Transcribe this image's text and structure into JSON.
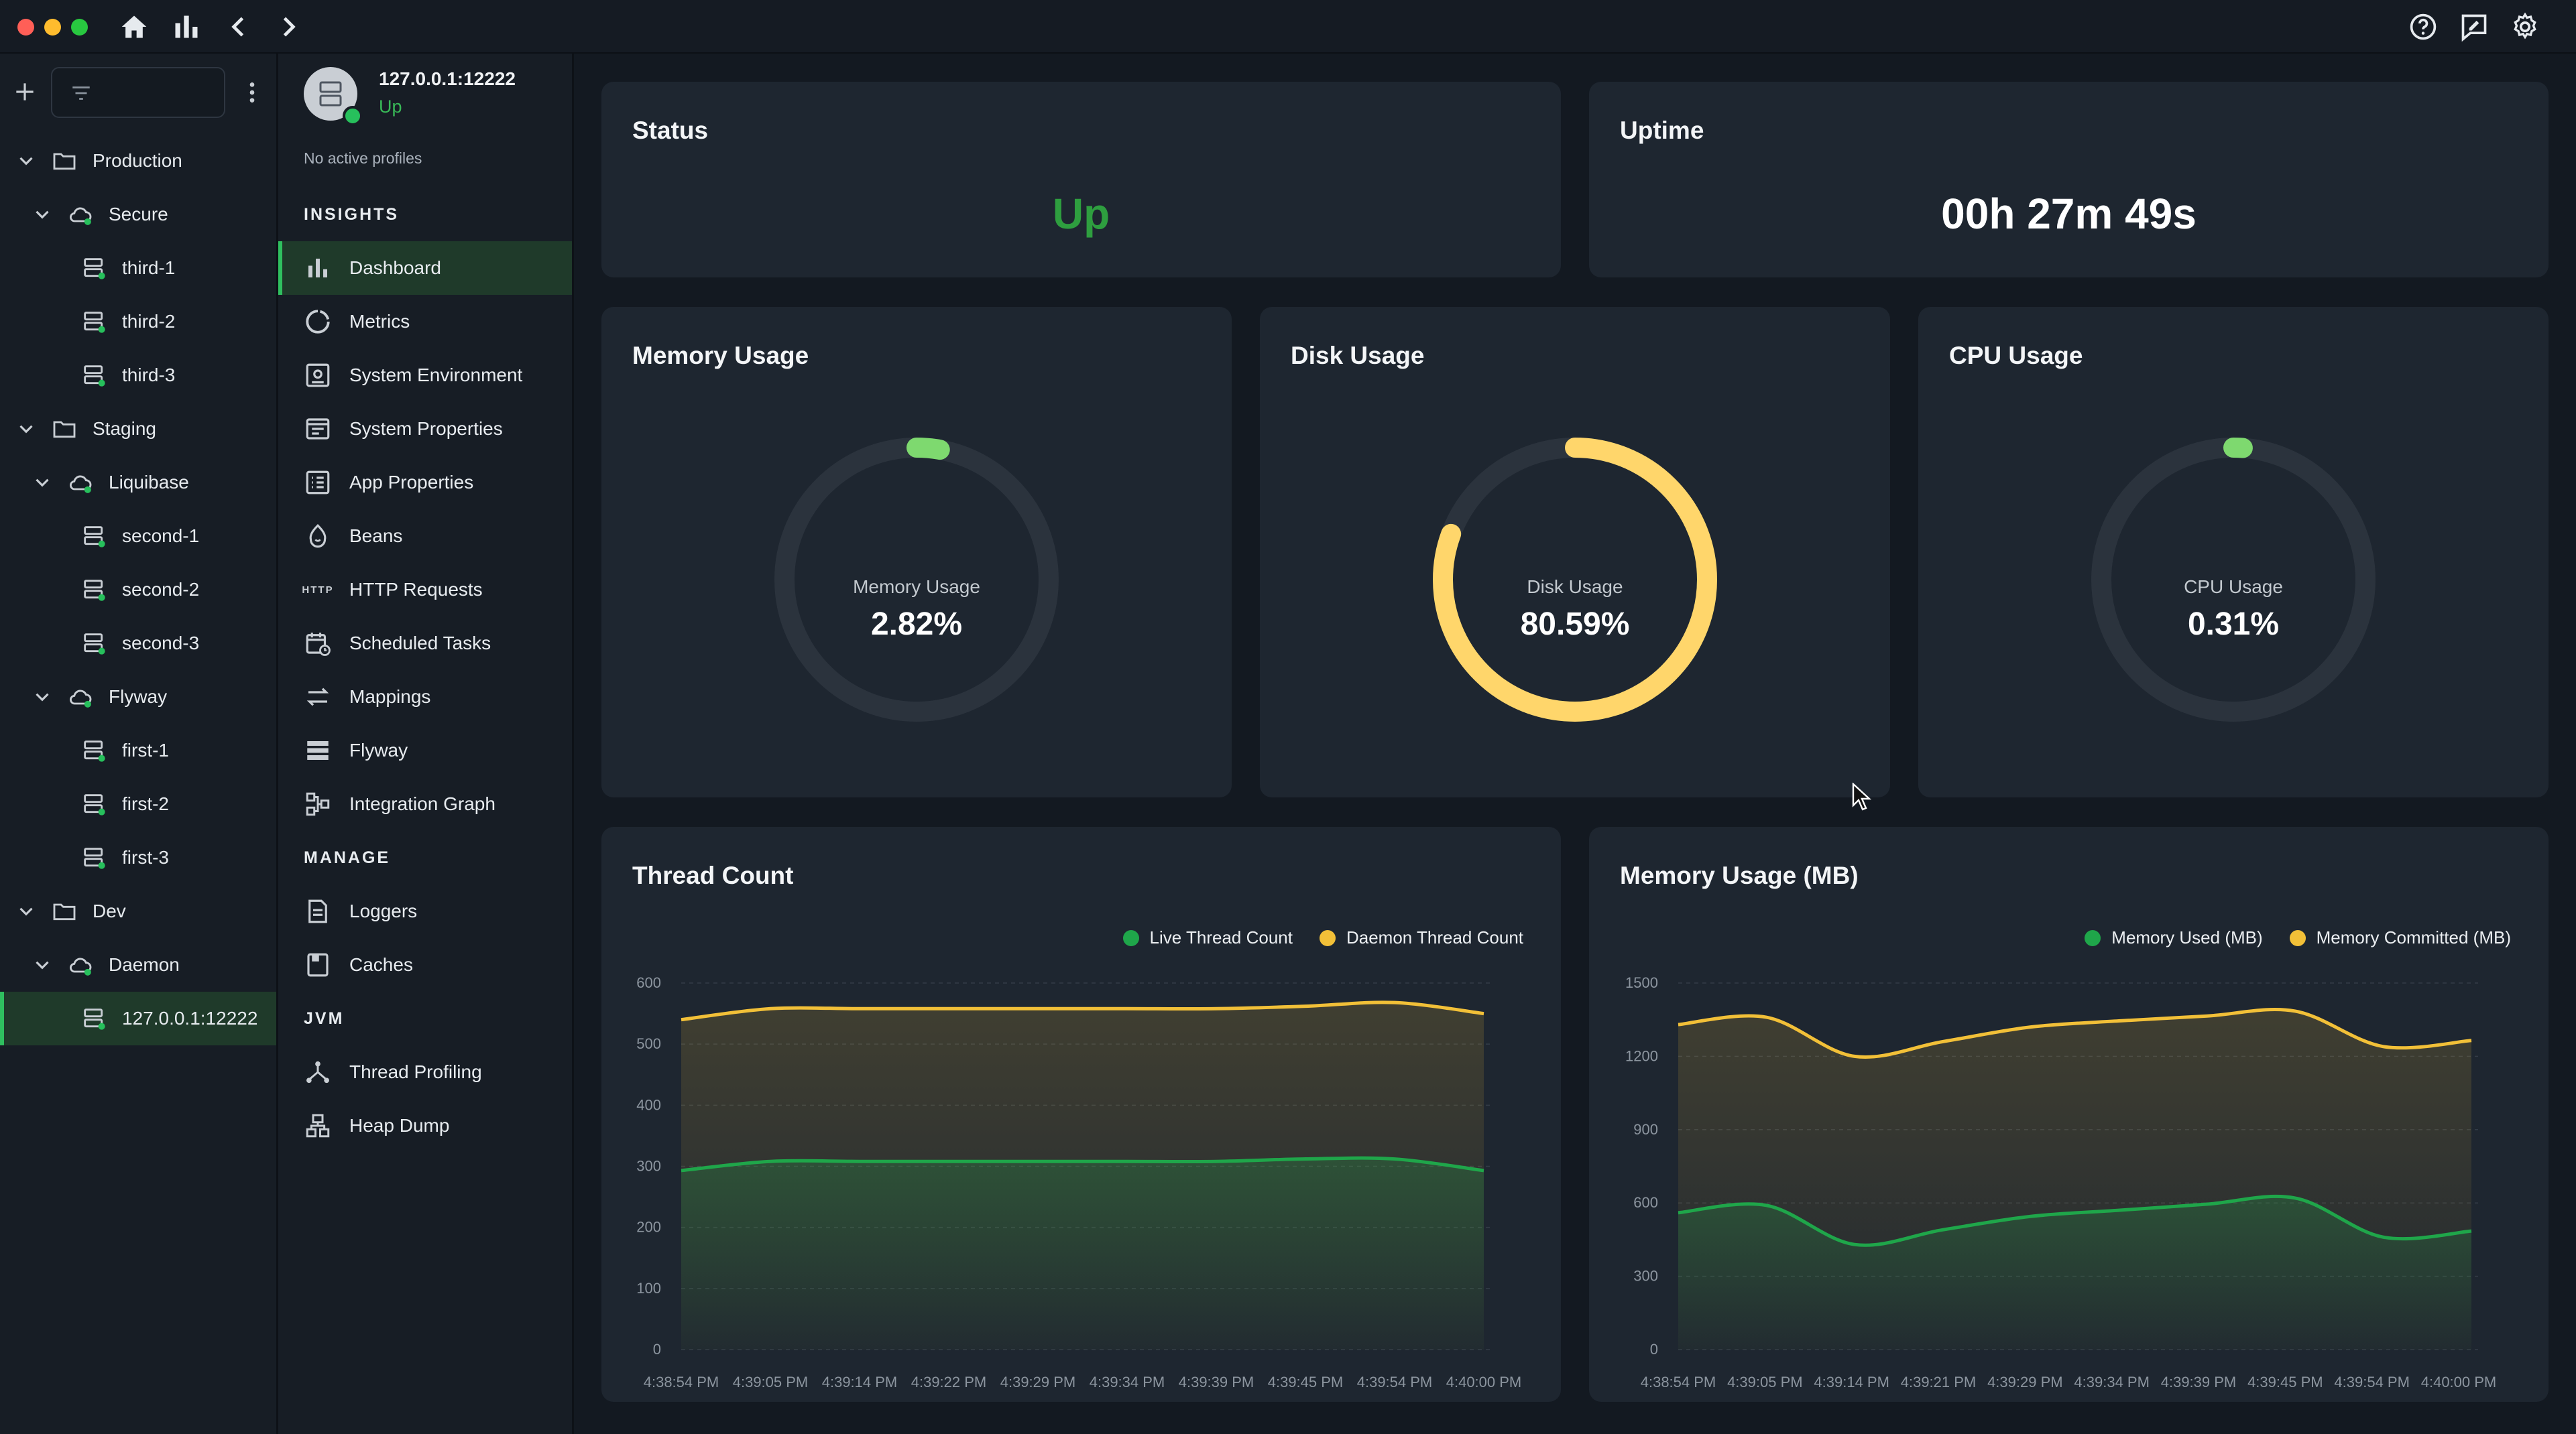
{
  "colors": {
    "green": "#1fa64a",
    "yellow": "#f2c038",
    "gauge_track": "#2b333d",
    "memory_gauge": "#7ed96f",
    "disk_gauge": "#ffd66b",
    "cpu_gauge": "#7ed96f",
    "status_up": "#2e9e3f"
  },
  "titlebar": {
    "icons": [
      "home-icon",
      "bar-chart-icon",
      "back-icon",
      "forward-icon",
      "help-icon",
      "feedback-icon",
      "settings-icon"
    ]
  },
  "tree": {
    "items": [
      {
        "label": "Production",
        "level": 0,
        "type": "folder"
      },
      {
        "label": "Secure",
        "level": 1,
        "type": "cloud"
      },
      {
        "label": "third-1",
        "level": 2,
        "type": "server"
      },
      {
        "label": "third-2",
        "level": 2,
        "type": "server"
      },
      {
        "label": "third-3",
        "level": 2,
        "type": "server"
      },
      {
        "label": "Staging",
        "level": 0,
        "type": "folder"
      },
      {
        "label": "Liquibase",
        "level": 1,
        "type": "cloud"
      },
      {
        "label": "second-1",
        "level": 2,
        "type": "server"
      },
      {
        "label": "second-2",
        "level": 2,
        "type": "server"
      },
      {
        "label": "second-3",
        "level": 2,
        "type": "server"
      },
      {
        "label": "Flyway",
        "level": 1,
        "type": "cloud"
      },
      {
        "label": "first-1",
        "level": 2,
        "type": "server"
      },
      {
        "label": "first-2",
        "level": 2,
        "type": "server"
      },
      {
        "label": "first-3",
        "level": 2,
        "type": "server"
      },
      {
        "label": "Dev",
        "level": 0,
        "type": "folder"
      },
      {
        "label": "Daemon",
        "level": 1,
        "type": "cloud"
      },
      {
        "label": "127.0.0.1:12222",
        "level": 2,
        "type": "server",
        "selected": true
      }
    ]
  },
  "server": {
    "name": "127.0.0.1:12222",
    "status": "Up",
    "profiles": "No active profiles"
  },
  "nav": {
    "insights_label": "INSIGHTS",
    "manage_label": "MANAGE",
    "jvm_label": "JVM",
    "insights": [
      {
        "label": "Dashboard",
        "icon": "bar-chart-icon",
        "active": true
      },
      {
        "label": "Metrics",
        "icon": "metrics-icon"
      },
      {
        "label": "System Environment",
        "icon": "system-environment-icon"
      },
      {
        "label": "System Properties",
        "icon": "system-properties-icon"
      },
      {
        "label": "App Properties",
        "icon": "app-properties-icon"
      },
      {
        "label": "Beans",
        "icon": "beans-icon"
      },
      {
        "label": "HTTP Requests",
        "icon": "http-icon"
      },
      {
        "label": "Scheduled Tasks",
        "icon": "scheduled-tasks-icon"
      },
      {
        "label": "Mappings",
        "icon": "mappings-icon"
      },
      {
        "label": "Flyway",
        "icon": "flyway-icon"
      },
      {
        "label": "Integration Graph",
        "icon": "integration-graph-icon"
      }
    ],
    "manage": [
      {
        "label": "Loggers",
        "icon": "loggers-icon"
      },
      {
        "label": "Caches",
        "icon": "caches-icon"
      }
    ],
    "jvm": [
      {
        "label": "Thread Profiling",
        "icon": "thread-profiling-icon"
      },
      {
        "label": "Heap Dump",
        "icon": "heap-dump-icon"
      }
    ],
    "http_tag": "HTTP"
  },
  "dashboard": {
    "status": {
      "title": "Status",
      "value": "Up"
    },
    "uptime": {
      "title": "Uptime",
      "value": "00h 27m 49s"
    },
    "memory": {
      "title": "Memory Usage",
      "label": "Memory Usage",
      "value": "2.82%",
      "percent": 2.82
    },
    "disk": {
      "title": "Disk Usage",
      "label": "Disk Usage",
      "value": "80.59%",
      "percent": 80.59
    },
    "cpu": {
      "title": "CPU Usage",
      "label": "CPU Usage",
      "value": "0.31%",
      "percent": 0.31
    }
  },
  "chart_data": [
    {
      "type": "area",
      "title": "Thread Count",
      "x": [
        "4:38:54 PM",
        "4:39:05 PM",
        "4:39:14 PM",
        "4:39:22 PM",
        "4:39:29 PM",
        "4:39:34 PM",
        "4:39:39 PM",
        "4:39:45 PM",
        "4:39:54 PM",
        "4:40:00 PM"
      ],
      "ylim": [
        0,
        600
      ],
      "yticks": [
        0,
        100,
        200,
        300,
        400,
        500,
        600
      ],
      "grid": true,
      "legend": "top-right",
      "series": [
        {
          "name": "Live Thread Count",
          "color": "#1fa64a",
          "values": [
            293,
            308,
            308,
            308,
            308,
            308,
            308,
            312,
            312,
            293
          ]
        },
        {
          "name": "Daemon Thread Count",
          "color": "#f2c038",
          "values": [
            540,
            558,
            558,
            558,
            558,
            558,
            558,
            562,
            568,
            550
          ]
        }
      ]
    },
    {
      "type": "area",
      "title": "Memory Usage (MB)",
      "x": [
        "4:38:54 PM",
        "4:39:05 PM",
        "4:39:14 PM",
        "4:39:21 PM",
        "4:39:29 PM",
        "4:39:34 PM",
        "4:39:39 PM",
        "4:39:45 PM",
        "4:39:54 PM",
        "4:40:00 PM"
      ],
      "ylim": [
        0,
        1500
      ],
      "yticks": [
        0,
        300,
        600,
        900,
        1200,
        1500
      ],
      "grid": true,
      "legend": "top-right",
      "series": [
        {
          "name": "Memory Used (MB)",
          "color": "#1fa64a",
          "values": [
            560,
            590,
            430,
            490,
            545,
            570,
            595,
            620,
            460,
            485
          ]
        },
        {
          "name": "Memory Committed (MB)",
          "color": "#f2c038",
          "values": [
            1330,
            1360,
            1200,
            1260,
            1320,
            1345,
            1365,
            1385,
            1240,
            1265
          ]
        }
      ]
    }
  ]
}
